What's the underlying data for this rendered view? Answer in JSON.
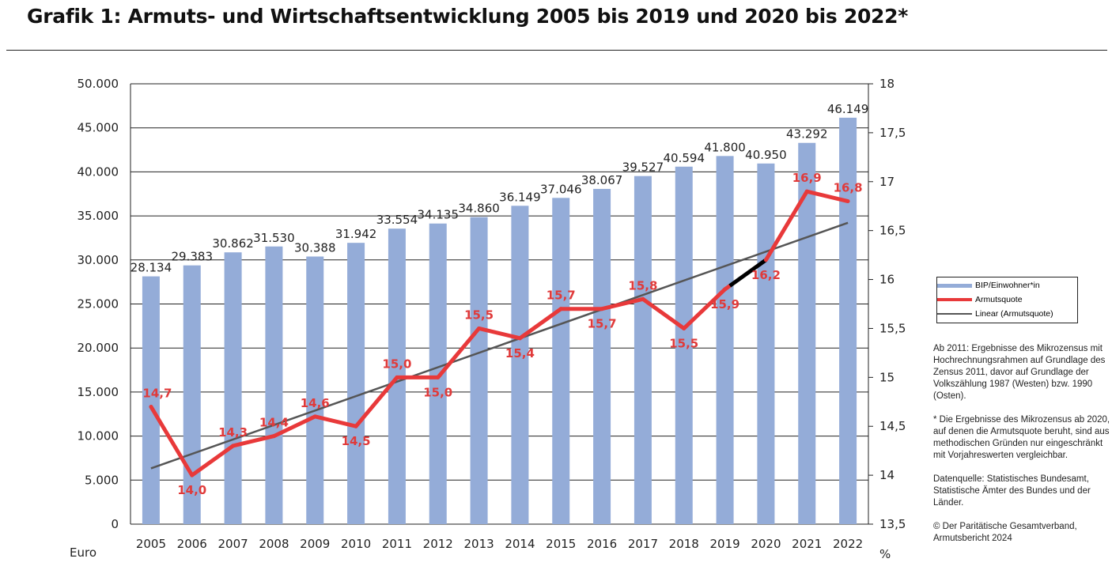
{
  "chart_data": {
    "type": "bar+line",
    "title": "Grafik 1: Armuts- und Wirtschaftsentwicklung 2005 bis 2019 und 2020 bis 2022*",
    "categories": [
      "2005",
      "2006",
      "2007",
      "2008",
      "2009",
      "2010",
      "2011",
      "2012",
      "2013",
      "2014",
      "2015",
      "2016",
      "2017",
      "2018",
      "2019",
      "2020",
      "2021",
      "2022"
    ],
    "series": [
      {
        "name": "BIP/Einwohner*in",
        "type": "bar",
        "axis": "left",
        "color": "#94acd8",
        "values": [
          28134,
          29383,
          30862,
          31530,
          30388,
          31942,
          33554,
          34135,
          34860,
          36149,
          37046,
          38067,
          39527,
          40594,
          41800,
          40950,
          43292,
          46149
        ],
        "labels": [
          "28.134",
          "29.383",
          "30.862",
          "31.530",
          "30.388",
          "31.942",
          "33.554",
          "34.135",
          "34.860",
          "36.149",
          "37.046",
          "38.067",
          "39.527",
          "40.594",
          "41.800",
          "40.950",
          "43.292",
          "46.149"
        ]
      },
      {
        "name": "Armutsquote",
        "type": "line",
        "axis": "right",
        "color": "#e8393a",
        "break_color": "#000000",
        "break_between": [
          "2019",
          "2020"
        ],
        "values": [
          14.7,
          14.0,
          14.3,
          14.4,
          14.6,
          14.5,
          15.0,
          15.0,
          15.5,
          15.4,
          15.7,
          15.7,
          15.8,
          15.5,
          15.9,
          16.2,
          16.9,
          16.8
        ],
        "labels": [
          "14,7",
          "14,0",
          "14,3",
          "14,4",
          "14,6",
          "14,5",
          "15,0",
          "15,0",
          "15,5",
          "15,4",
          "15,7",
          "15,7",
          "15,8",
          "15,5",
          "15,9",
          "16,2",
          "16,9",
          "16,8"
        ]
      },
      {
        "name": "Linear (Armutsquote)",
        "type": "trendline",
        "axis": "right",
        "color": "#555555",
        "start": 14.07,
        "end": 16.58
      }
    ],
    "y_left": {
      "label": "Euro",
      "range": [
        0,
        50000
      ],
      "ticks": [
        "0",
        "5.000",
        "10.000",
        "15.000",
        "20.000",
        "25.000",
        "30.000",
        "35.000",
        "40.000",
        "45.000",
        "50.000"
      ]
    },
    "y_right": {
      "label": "%",
      "range": [
        13.5,
        18
      ],
      "ticks": [
        "13,5",
        "14",
        "14,5",
        "15",
        "15,5",
        "16",
        "16,5",
        "17",
        "17,5",
        "18"
      ]
    },
    "grid": true,
    "legend": "right"
  },
  "notes": [
    "Ab 2011: Ergebnisse des Mikrozensus mit Hochrechnungsrahmen auf Grundlage des Zensus 2011, davor auf Grundlage der Volkszählung 1987 (Westen) bzw. 1990 (Osten).",
    "* Die Ergebnisse des Mikrozensus ab 2020, auf denen die Armutsquote beruht, sind aus methodischen Gründen nur eingeschränkt mit Vorjahreswerten vergleichbar.",
    "Datenquelle: Statistisches Bundesamt, Statistische Ämter des Bundes und der Länder.",
    "© Der Paritätische Gesamtverband, Armutsbericht 2024"
  ]
}
